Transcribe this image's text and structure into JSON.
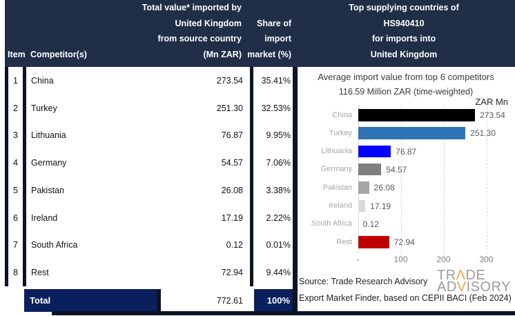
{
  "header": {
    "item": "Item",
    "competitors": "Competitor(s)",
    "value_lines": [
      "Total value* imported by",
      "United Kingdom",
      "from source country",
      "(Mn ZAR)"
    ],
    "share_lines": [
      "Share of",
      "import",
      "market (%)"
    ],
    "right_lines": [
      "Top supplying countries of",
      "HS940410",
      "for imports into",
      "United Kingdom"
    ]
  },
  "table": {
    "rows": [
      {
        "item": "1",
        "competitor": "China",
        "value": "273.54",
        "share": "35.41%"
      },
      {
        "item": "2",
        "competitor": "Turkey",
        "value": "251.30",
        "share": "32.53%"
      },
      {
        "item": "3",
        "competitor": "Lithuania",
        "value": "76.87",
        "share": "9.95%"
      },
      {
        "item": "4",
        "competitor": "Germany",
        "value": "54.57",
        "share": "7.06%"
      },
      {
        "item": "5",
        "competitor": "Pakistan",
        "value": "26.08",
        "share": "3.38%"
      },
      {
        "item": "6",
        "competitor": "Ireland",
        "value": "17.19",
        "share": "2.22%"
      },
      {
        "item": "7",
        "competitor": "South Africa",
        "value": "0.12",
        "share": "0.01%"
      },
      {
        "item": "8",
        "competitor": "Rest",
        "value": "72.94",
        "share": "9.44%"
      }
    ],
    "total": {
      "label": "Total",
      "value": "772.61",
      "share": "100%"
    }
  },
  "chart_data": {
    "type": "bar",
    "orientation": "horizontal",
    "title": "Average import value from top 6 competitors",
    "subtitle": "116.59 Million ZAR (time-weighted)",
    "unit_label": "ZAR Mn",
    "categories": [
      "China",
      "Turkey",
      "Lithuania",
      "Germany",
      "Pakistan",
      "Ireland",
      "South Africa",
      "Rest"
    ],
    "values": [
      273.54,
      251.3,
      76.87,
      54.57,
      26.08,
      17.19,
      0.12,
      72.94
    ],
    "value_labels": [
      "273.54",
      "251.30",
      "76.87",
      "54.57",
      "26.08",
      "17.19",
      "0.12",
      "72.94"
    ],
    "bar_colors": [
      "#000000",
      "#2e74b5",
      "#0000ff",
      "#7f7f7f",
      "#a6a6a6",
      "#d9d9d9",
      "#d9d9d9",
      "#c00000"
    ],
    "xlim": [
      0,
      300
    ],
    "xticks": [
      "-",
      "100",
      "200",
      "300"
    ],
    "xtick_values": [
      0,
      100,
      200,
      300
    ],
    "grid": "dashed-vertical",
    "legend": "none"
  },
  "footer": {
    "source_line1": "Source: Trade Research Advisory",
    "source_line2": "Export Market Finder, based on CEPII BACI (Feb 2024)",
    "logo": {
      "line1_pre": "TR",
      "line1_accent": "Λ",
      "line1_post": "DE",
      "line2_pre": "AD",
      "line2_accent": "V",
      "line2_post": "ISORY",
      "accent_color": "#F2A53C",
      "text_color": "#9b9b9b"
    }
  },
  "colors": {
    "header_navy": "#212e47",
    "total_navy": "#0a1f5e",
    "border_black": "#0d1424",
    "accent_orange": "#F2A53C"
  }
}
